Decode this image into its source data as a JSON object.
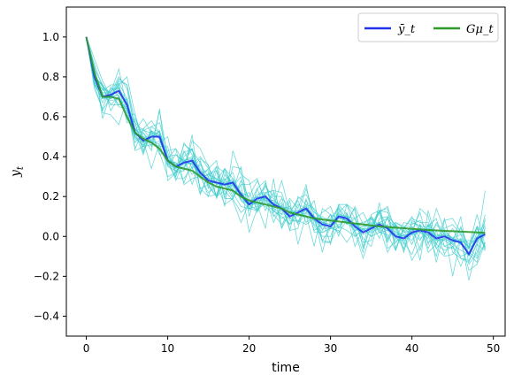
{
  "chart_data": {
    "type": "line",
    "xlabel": "time",
    "ylabel": "y_t",
    "xlim": [
      -2.45,
      51.45
    ],
    "ylim": [
      -0.5,
      1.15
    ],
    "xticks": [
      0,
      10,
      20,
      30,
      40,
      50
    ],
    "yticks": [
      -0.4,
      -0.2,
      0.0,
      0.2,
      0.4,
      0.6,
      0.8,
      1.0
    ],
    "ytick_labels": [
      "−0.4",
      "−0.2",
      "0.0",
      "0.2",
      "0.4",
      "0.6",
      "0.8",
      "1.0"
    ],
    "grid": false,
    "legend_placement": "top-right",
    "x": [
      0,
      1,
      2,
      3,
      4,
      5,
      6,
      7,
      8,
      9,
      10,
      11,
      12,
      13,
      14,
      15,
      16,
      17,
      18,
      19,
      20,
      21,
      22,
      23,
      24,
      25,
      26,
      27,
      28,
      29,
      30,
      31,
      32,
      33,
      34,
      35,
      36,
      37,
      38,
      39,
      40,
      41,
      42,
      43,
      44,
      45,
      46,
      47,
      48,
      49
    ],
    "series": [
      {
        "name": "ȳ_t",
        "color": "#2233ee",
        "values": [
          1.0,
          0.8,
          0.7,
          0.71,
          0.73,
          0.66,
          0.52,
          0.48,
          0.5,
          0.5,
          0.38,
          0.35,
          0.37,
          0.38,
          0.32,
          0.28,
          0.27,
          0.26,
          0.27,
          0.21,
          0.16,
          0.19,
          0.2,
          0.16,
          0.14,
          0.1,
          0.12,
          0.14,
          0.09,
          0.06,
          0.05,
          0.1,
          0.09,
          0.05,
          0.02,
          0.04,
          0.06,
          0.04,
          0.0,
          -0.01,
          0.02,
          0.03,
          0.02,
          -0.01,
          0.0,
          -0.02,
          -0.03,
          -0.09,
          -0.01,
          0.01
        ]
      },
      {
        "name": "Gμ_t",
        "color": "#2e9a2e",
        "values": [
          1.0,
          0.82,
          0.7,
          0.7,
          0.69,
          0.6,
          0.52,
          0.49,
          0.47,
          0.44,
          0.38,
          0.35,
          0.34,
          0.33,
          0.3,
          0.27,
          0.25,
          0.24,
          0.23,
          0.2,
          0.18,
          0.17,
          0.16,
          0.15,
          0.14,
          0.12,
          0.11,
          0.1,
          0.09,
          0.085,
          0.08,
          0.075,
          0.07,
          0.065,
          0.06,
          0.055,
          0.05,
          0.047,
          0.044,
          0.041,
          0.038,
          0.035,
          0.032,
          0.03,
          0.028,
          0.026,
          0.024,
          0.022,
          0.02,
          0.018
        ]
      }
    ],
    "sample_paths": {
      "color": "#40cccc",
      "count": 20,
      "values": [
        [
          1.0,
          0.84,
          0.76,
          0.69,
          0.77,
          0.69,
          0.47,
          0.52,
          0.47,
          0.45,
          0.45,
          0.3,
          0.42,
          0.44,
          0.31,
          0.2,
          0.21,
          0.34,
          0.23,
          0.35,
          0.1,
          0.24,
          0.28,
          0.1,
          0.14,
          0.15,
          0.06,
          0.12,
          0.18,
          -0.03,
          -0.03,
          0.06,
          0.08,
          0.14,
          -0.03,
          -0.02,
          0.17,
          -0.06,
          -0.03,
          0.01,
          -0.12,
          -0.05,
          0.06,
          -0.13,
          0.03,
          -0.2,
          -0.01,
          -0.22,
          -0.05,
          0.11
        ],
        [
          1.0,
          0.76,
          0.74,
          0.69,
          0.75,
          0.57,
          0.59,
          0.5,
          0.43,
          0.64,
          0.28,
          0.32,
          0.38,
          0.4,
          0.24,
          0.2,
          0.33,
          0.15,
          0.43,
          0.31,
          0.28,
          0.12,
          0.2,
          0.07,
          0.16,
          0.03,
          0.2,
          0.16,
          0.03,
          0.06,
          0.09,
          0.14,
          0.06,
          0.15,
          0.06,
          0.04,
          0.13,
          0.14,
          -0.07,
          0.04,
          0.1,
          0.02,
          0.03,
          -0.04,
          0.09,
          -0.08,
          -0.11,
          -0.12,
          -0.04,
          -0.07
        ],
        [
          1.0,
          0.79,
          0.72,
          0.72,
          0.8,
          0.74,
          0.53,
          0.54,
          0.48,
          0.53,
          0.36,
          0.3,
          0.47,
          0.41,
          0.32,
          0.33,
          0.2,
          0.28,
          0.32,
          0.18,
          0.14,
          0.13,
          0.26,
          0.12,
          0.19,
          0.15,
          0.07,
          0.14,
          0.08,
          -0.02,
          0.04,
          0.12,
          0.16,
          0.04,
          0.05,
          0.06,
          0.13,
          0.12,
          0.05,
          -0.08,
          0.08,
          0.05,
          0.05,
          0.09,
          -0.05,
          -0.06,
          0.05,
          -0.06,
          0.04,
          -0.07
        ],
        [
          1.0,
          0.74,
          0.64,
          0.75,
          0.7,
          0.6,
          0.49,
          0.46,
          0.48,
          0.43,
          0.39,
          0.36,
          0.39,
          0.26,
          0.38,
          0.25,
          0.2,
          0.31,
          0.26,
          0.18,
          0.16,
          0.24,
          0.13,
          0.22,
          0.04,
          0.12,
          0.19,
          0.21,
          0.13,
          0.06,
          0.11,
          0.0,
          0.16,
          0.13,
          -0.06,
          0.05,
          0.12,
          -0.02,
          0.06,
          0.02,
          0.03,
          0.12,
          -0.04,
          0.07,
          0.02,
          -0.01,
          -0.03,
          -0.02,
          -0.03,
          0.23
        ],
        [
          1.0,
          0.77,
          0.74,
          0.72,
          0.84,
          0.64,
          0.44,
          0.54,
          0.58,
          0.52,
          0.39,
          0.44,
          0.37,
          0.36,
          0.4,
          0.34,
          0.38,
          0.19,
          0.19,
          0.28,
          0.19,
          0.16,
          0.22,
          0.23,
          0.22,
          0.09,
          0.07,
          0.18,
          0.12,
          0.09,
          -0.04,
          0.16,
          0.11,
          -0.05,
          0.04,
          0.0,
          0.07,
          -0.03,
          0.06,
          -0.07,
          0.02,
          -0.02,
          0.06,
          -0.06,
          -0.1,
          -0.09,
          -0.02,
          -0.17,
          -0.14,
          -0.03
        ],
        [
          1.0,
          0.76,
          0.69,
          0.7,
          0.78,
          0.76,
          0.57,
          0.53,
          0.52,
          0.5,
          0.38,
          0.29,
          0.29,
          0.35,
          0.21,
          0.32,
          0.26,
          0.16,
          0.19,
          0.26,
          0.02,
          0.14,
          0.18,
          0.18,
          0.14,
          0.06,
          0.11,
          0.24,
          0.1,
          -0.08,
          0.08,
          0.15,
          0.08,
          0.05,
          0.06,
          0.1,
          0.02,
          0.01,
          -0.07,
          0.05,
          0.05,
          -0.01,
          0.01,
          -0.1,
          0.08,
          0.09,
          0.02,
          -0.04,
          0.05,
          -0.06
        ],
        [
          1.0,
          0.86,
          0.59,
          0.72,
          0.65,
          0.64,
          0.57,
          0.42,
          0.52,
          0.41,
          0.43,
          0.44,
          0.26,
          0.29,
          0.3,
          0.22,
          0.25,
          0.26,
          0.19,
          0.12,
          0.16,
          0.17,
          0.27,
          0.14,
          0.17,
          0.08,
          0.08,
          0.06,
          0.09,
          0.04,
          0.04,
          0.05,
          0.03,
          0.0,
          0.04,
          0.0,
          0.02,
          0.03,
          0.05,
          0.03,
          -0.04,
          0.06,
          -0.08,
          -0.04,
          -0.07,
          -0.05,
          -0.1,
          -0.08,
          -0.11,
          -0.03
        ],
        [
          1.0,
          0.86,
          0.75,
          0.66,
          0.66,
          0.69,
          0.43,
          0.45,
          0.53,
          0.42,
          0.3,
          0.32,
          0.33,
          0.51,
          0.22,
          0.3,
          0.2,
          0.23,
          0.18,
          0.07,
          0.17,
          0.16,
          0.04,
          0.29,
          0.04,
          0.18,
          -0.04,
          0.11,
          -0.05,
          0.14,
          0.11,
          0.04,
          0.11,
          0.02,
          -0.11,
          0.02,
          0.13,
          -0.01,
          0.07,
          0.05,
          0.02,
          -0.12,
          0.13,
          -0.02,
          -0.02,
          -0.05,
          -0.15,
          -0.05,
          0.11,
          -0.05
        ],
        [
          1.0,
          0.79,
          0.76,
          0.63,
          0.7,
          0.63,
          0.52,
          0.41,
          0.55,
          0.52,
          0.36,
          0.34,
          0.46,
          0.43,
          0.37,
          0.24,
          0.35,
          0.32,
          0.22,
          0.2,
          0.16,
          0.13,
          0.17,
          0.15,
          0.28,
          0.12,
          0.13,
          0.1,
          0.1,
          -0.02,
          -0.03,
          0.14,
          0.06,
          0.09,
          0.12,
          0.04,
          0.12,
          0.15,
          0.02,
          0.01,
          -0.02,
          0.06,
          0.0,
          0.06,
          0.01,
          -0.01,
          0.04,
          -0.06,
          0.05,
          -0.06
        ],
        [
          1.0,
          0.89,
          0.78,
          0.7,
          0.76,
          0.8,
          0.61,
          0.48,
          0.34,
          0.47,
          0.5,
          0.32,
          0.4,
          0.44,
          0.24,
          0.26,
          0.2,
          0.34,
          0.25,
          0.3,
          0.13,
          0.2,
          0.25,
          0.2,
          0.2,
          0.03,
          0.04,
          0.19,
          0.02,
          0.02,
          0.04,
          0.03,
          -0.03,
          0.03,
          0.05,
          0.07,
          -0.01,
          0.1,
          0.06,
          -0.03,
          -0.09,
          0.02,
          -0.01,
          0.14,
          0.03,
          -0.01,
          0.01,
          -0.09,
          -0.13,
          0.05
        ],
        [
          1.0,
          0.84,
          0.62,
          0.61,
          0.56,
          0.69,
          0.53,
          0.59,
          0.52,
          0.51,
          0.38,
          0.37,
          0.27,
          0.38,
          0.29,
          0.31,
          0.29,
          0.26,
          0.29,
          0.22,
          0.2,
          0.28,
          0.18,
          0.14,
          0.11,
          0.12,
          0.18,
          0.07,
          0.1,
          0.03,
          0.11,
          0.09,
          0.1,
          0.09,
          -0.01,
          -0.05,
          0.09,
          0.1,
          -0.06,
          0.04,
          0.09,
          0.07,
          0.07,
          0.0,
          0.01,
          -0.04,
          -0.07,
          -0.09,
          0.02,
          -0.05
        ],
        [
          1.0,
          0.8,
          0.76,
          0.7,
          0.79,
          0.76,
          0.53,
          0.52,
          0.45,
          0.63,
          0.39,
          0.28,
          0.38,
          0.31,
          0.36,
          0.3,
          0.35,
          0.19,
          0.35,
          0.34,
          0.16,
          0.21,
          0.22,
          0.23,
          0.11,
          0.19,
          0.14,
          0.26,
          0.05,
          0.0,
          0.0,
          0.11,
          0.07,
          0.03,
          -0.08,
          0.09,
          0.03,
          0.09,
          0.0,
          -0.06,
          0.05,
          -0.07,
          0.06,
          0.0,
          -0.05,
          -0.03,
          0.1,
          -0.14,
          -0.08,
          0.04
        ],
        [
          1.0,
          0.82,
          0.73,
          0.76,
          0.76,
          0.62,
          0.61,
          0.45,
          0.46,
          0.48,
          0.38,
          0.37,
          0.33,
          0.48,
          0.44,
          0.35,
          0.26,
          0.29,
          0.22,
          0.15,
          0.14,
          0.15,
          0.22,
          0.19,
          0.14,
          0.14,
          0.11,
          0.1,
          0.06,
          0.02,
          0.04,
          0.16,
          0.16,
          0.09,
          -0.05,
          0.11,
          0.13,
          0.04,
          0.07,
          0.04,
          0.01,
          0.14,
          0.1,
          -0.04,
          0.04,
          0.06,
          0.01,
          -0.06,
          -0.1,
          0.09
        ],
        [
          1.0,
          0.76,
          0.63,
          0.7,
          0.71,
          0.59,
          0.52,
          0.53,
          0.55,
          0.57,
          0.42,
          0.32,
          0.43,
          0.34,
          0.39,
          0.36,
          0.19,
          0.29,
          0.2,
          0.26,
          0.26,
          0.29,
          0.16,
          0.13,
          0.09,
          0.12,
          0.12,
          0.13,
          0.1,
          0.07,
          0.05,
          0.02,
          0.08,
          0.03,
          0.04,
          0.04,
          0.07,
          0.09,
          0.04,
          -0.04,
          0.07,
          0.05,
          -0.06,
          0.03,
          -0.09,
          -0.01,
          -0.11,
          -0.13,
          -0.03,
          0.06
        ],
        [
          1.0,
          0.76,
          0.72,
          0.66,
          0.7,
          0.61,
          0.57,
          0.43,
          0.53,
          0.51,
          0.36,
          0.41,
          0.37,
          0.44,
          0.3,
          0.31,
          0.33,
          0.21,
          0.28,
          0.2,
          0.22,
          0.13,
          0.21,
          0.13,
          0.1,
          0.06,
          0.16,
          0.14,
          0.08,
          0.12,
          0.15,
          0.04,
          0.12,
          0.0,
          0.03,
          0.1,
          0.05,
          -0.08,
          -0.01,
          0.07,
          0.06,
          0.08,
          0.02,
          -0.06,
          -0.01,
          -0.04,
          -0.01,
          -0.06,
          0.05,
          0.01
        ],
        [
          1.0,
          0.79,
          0.7,
          0.68,
          0.69,
          0.6,
          0.5,
          0.45,
          0.53,
          0.49,
          0.4,
          0.41,
          0.38,
          0.36,
          0.3,
          0.34,
          0.28,
          0.34,
          0.29,
          0.19,
          0.16,
          0.17,
          0.15,
          0.11,
          0.06,
          0.11,
          0.11,
          0.16,
          0.14,
          0.08,
          0.04,
          0.12,
          0.07,
          0.06,
          0.07,
          0.09,
          0.02,
          0.06,
          -0.03,
          0.03,
          0.01,
          0.04,
          -0.03,
          -0.01,
          -0.02,
          0.04,
          -0.04,
          -0.06,
          -0.02,
          0.08
        ],
        [
          1.0,
          0.81,
          0.75,
          0.72,
          0.66,
          0.65,
          0.51,
          0.5,
          0.48,
          0.46,
          0.35,
          0.33,
          0.35,
          0.39,
          0.33,
          0.26,
          0.28,
          0.27,
          0.23,
          0.22,
          0.14,
          0.18,
          0.19,
          0.18,
          0.15,
          0.13,
          0.1,
          0.12,
          0.08,
          0.1,
          0.07,
          0.09,
          0.08,
          0.06,
          0.03,
          0.02,
          0.04,
          0.05,
          0.02,
          0.0,
          0.03,
          0.02,
          0.04,
          0.01,
          0.0,
          -0.01,
          -0.02,
          -0.05,
          0.0,
          0.02
        ],
        [
          1.0,
          0.78,
          0.67,
          0.74,
          0.74,
          0.68,
          0.5,
          0.47,
          0.5,
          0.53,
          0.4,
          0.36,
          0.36,
          0.37,
          0.31,
          0.29,
          0.29,
          0.25,
          0.27,
          0.22,
          0.17,
          0.2,
          0.18,
          0.17,
          0.13,
          0.11,
          0.13,
          0.15,
          0.1,
          0.07,
          0.06,
          0.1,
          0.1,
          0.06,
          0.02,
          0.05,
          0.07,
          0.05,
          0.01,
          0.0,
          0.02,
          0.04,
          0.03,
          0.0,
          0.01,
          -0.01,
          -0.04,
          -0.08,
          -0.02,
          0.0
        ],
        [
          1.0,
          0.83,
          0.71,
          0.69,
          0.72,
          0.67,
          0.54,
          0.49,
          0.51,
          0.49,
          0.37,
          0.34,
          0.38,
          0.39,
          0.34,
          0.27,
          0.27,
          0.24,
          0.26,
          0.2,
          0.15,
          0.18,
          0.21,
          0.15,
          0.15,
          0.09,
          0.11,
          0.13,
          0.08,
          0.05,
          0.04,
          0.09,
          0.08,
          0.04,
          0.01,
          0.03,
          0.05,
          0.03,
          -0.01,
          -0.02,
          0.01,
          0.02,
          0.01,
          -0.02,
          -0.01,
          -0.03,
          -0.02,
          -0.1,
          -0.01,
          0.02
        ],
        [
          1.0,
          0.77,
          0.69,
          0.73,
          0.75,
          0.65,
          0.5,
          0.47,
          0.49,
          0.51,
          0.39,
          0.36,
          0.36,
          0.37,
          0.3,
          0.29,
          0.26,
          0.27,
          0.28,
          0.22,
          0.17,
          0.2,
          0.19,
          0.17,
          0.13,
          0.11,
          0.13,
          0.15,
          0.1,
          0.07,
          0.06,
          0.11,
          0.1,
          0.06,
          0.03,
          0.05,
          0.07,
          0.05,
          0.01,
          0.0,
          0.03,
          0.04,
          0.03,
          0.0,
          0.01,
          -0.01,
          -0.04,
          -0.08,
          0.0,
          0.01
        ]
      ]
    }
  }
}
